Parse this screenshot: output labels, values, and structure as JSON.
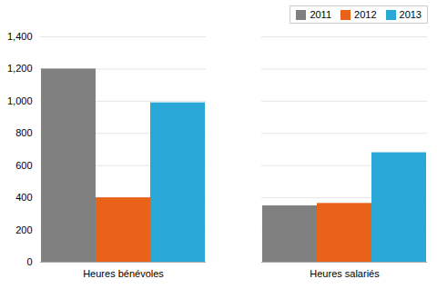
{
  "chart_data": {
    "type": "bar",
    "categories": [
      "Heures bénévoles",
      "Heures salariés"
    ],
    "series": [
      {
        "name": "2011",
        "color": "#808080",
        "values": [
          1200,
          350
        ]
      },
      {
        "name": "2012",
        "color": "#E8621A",
        "values": [
          400,
          365
        ]
      },
      {
        "name": "2013",
        "color": "#29A8D8",
        "values": [
          990,
          680
        ]
      }
    ],
    "ylim": [
      0,
      1400
    ],
    "yticks": [
      0,
      200,
      400,
      600,
      800,
      1000,
      1200,
      1400
    ],
    "grid": true,
    "legend": "upper right"
  }
}
